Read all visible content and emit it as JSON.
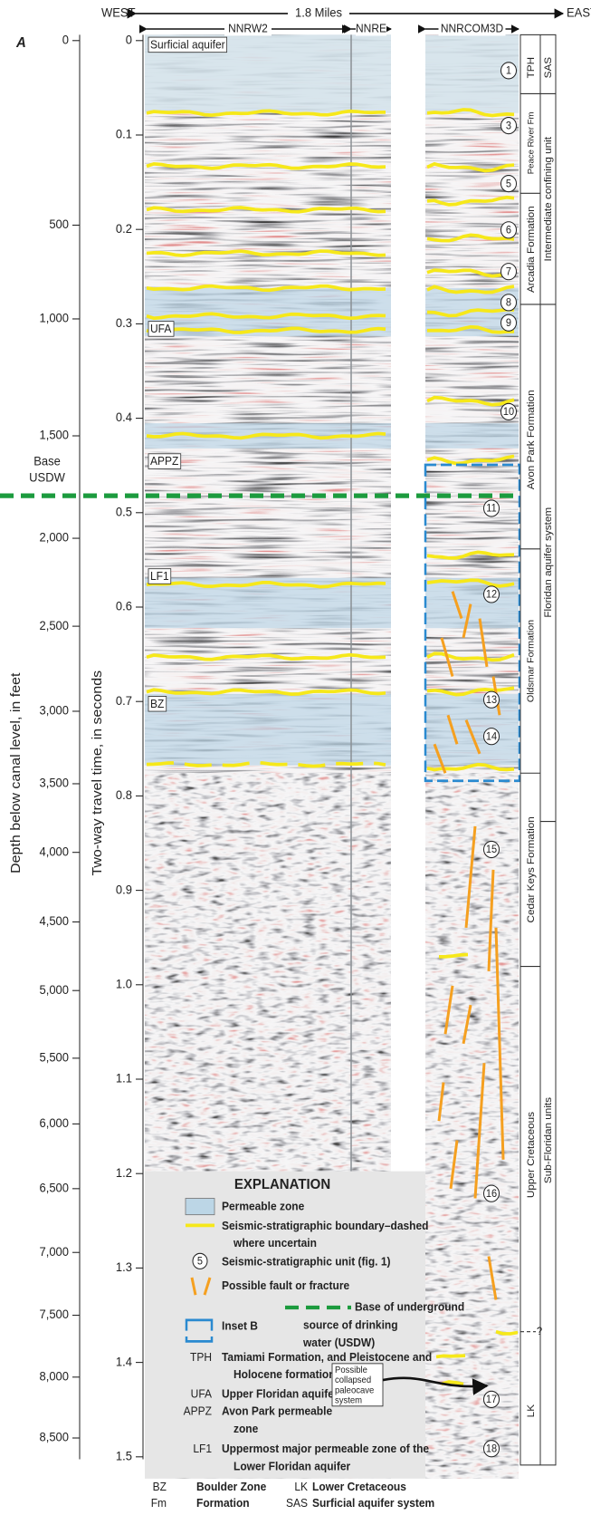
{
  "panel_label": "A",
  "header": {
    "west": "WEST",
    "distance": "1.8 Miles",
    "east": "EAST",
    "lines": [
      "NNRW2",
      "NNRE",
      "NNRCOM3D"
    ]
  },
  "depth_axis": {
    "title": "Depth below canal level, in feet",
    "ticks": [
      "0",
      "500",
      "1,000",
      "1,500",
      "2,000",
      "2,500",
      "3,000",
      "3,500",
      "4,000",
      "4,500",
      "5,000",
      "5,500",
      "6,000",
      "6,500",
      "7,000",
      "7,500",
      "8,000",
      "8,500"
    ]
  },
  "time_axis": {
    "title": "Two-way travel time, in seconds",
    "ticks": [
      "0",
      "0.1",
      "0.2",
      "0.3",
      "0.4",
      "0.5",
      "0.6",
      "0.7",
      "0.8",
      "0.9",
      "1.0",
      "1.1",
      "1.2",
      "1.3",
      "1.4",
      "1.5"
    ]
  },
  "base_usdw": [
    "Base",
    "USDW"
  ],
  "profile_labels": [
    "Surficial aquifer",
    "UFA",
    "APPZ",
    "LF1",
    "BZ"
  ],
  "units": [
    "1",
    "3",
    "5",
    "6",
    "7",
    "8",
    "9",
    "10",
    "11",
    "12",
    "13",
    "14",
    "15",
    "16",
    "17",
    "18"
  ],
  "formations": [
    "TPH",
    "Peace River Fm",
    "Arcadia Formation",
    "Avon Park Formation",
    "Oldsmar Formation",
    "Cedar Keys Formation",
    "Upper Cretaceous",
    "LK"
  ],
  "uncertain_mark": "?",
  "hydrogeologic_units": [
    "SAS",
    "Intermediate confining unit",
    "Floridan aquifer system",
    "Sub-Floridan units"
  ],
  "explanation": {
    "title": "EXPLANATION",
    "permeable_zone": "Permeable zone",
    "boundary": [
      "Seismic-stratigraphic boundary–dashed",
      "where uncertain"
    ],
    "unit_symbol": "5",
    "unit": "Seismic-stratigraphic unit (fig. 1)",
    "fault": "Possible fault or fracture",
    "usdw": [
      "Base of underground",
      "source of drinking",
      "water (USDW)"
    ],
    "inset": "Inset B",
    "abbreviations": [
      {
        "abbr": "TPH",
        "text": [
          "Tamiami Formation, and Pleistocene and",
          "Holocene formations"
        ]
      },
      {
        "abbr": "UFA",
        "text": [
          "Upper Floridan aquifer"
        ]
      },
      {
        "abbr": "APPZ",
        "text": [
          "Avon Park permeable",
          "zone"
        ]
      },
      {
        "abbr": "LF1",
        "text": [
          "Uppermost major permeable zone of the",
          "Lower Floridan aquifer"
        ]
      }
    ]
  },
  "callout": [
    "Possible",
    "collapsed",
    "paleocave",
    "system"
  ],
  "footer_abbreviations": [
    {
      "abbr": "BZ",
      "text": "Boulder Zone"
    },
    {
      "abbr": "LK",
      "text": "Lower Cretaceous"
    },
    {
      "abbr": "Fm",
      "text": "Formation"
    },
    {
      "abbr": "SAS",
      "text": "Surficial aquifer system"
    }
  ]
}
